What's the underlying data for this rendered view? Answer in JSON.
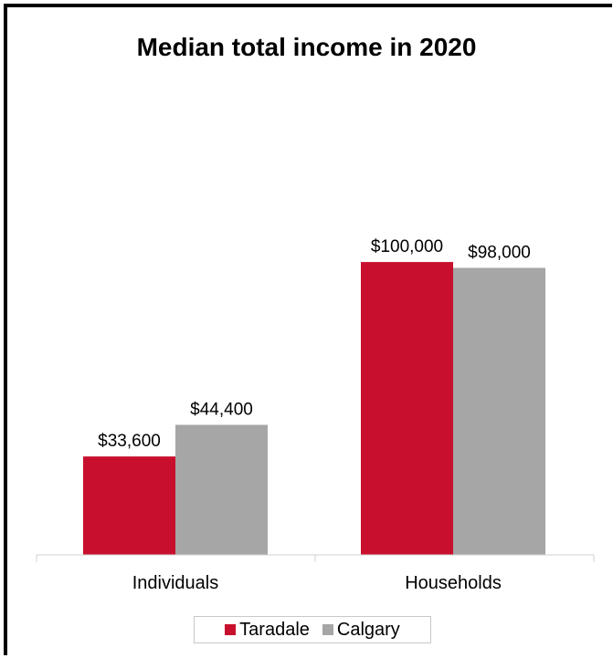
{
  "chart_data": {
    "type": "bar",
    "title": "Median total income in 2020",
    "categories": [
      "Individuals",
      "Households"
    ],
    "series": [
      {
        "name": "Taradale",
        "color": "#c8102e",
        "values": [
          33600,
          100000
        ],
        "labels": [
          "$33,600",
          "$100,000"
        ]
      },
      {
        "name": "Calgary",
        "color": "#a6a6a6",
        "values": [
          44400,
          98000
        ],
        "labels": [
          "$44,400",
          "$98,000"
        ]
      }
    ],
    "ylim": [
      0,
      110000
    ],
    "grid": false,
    "legend_position": "bottom"
  }
}
